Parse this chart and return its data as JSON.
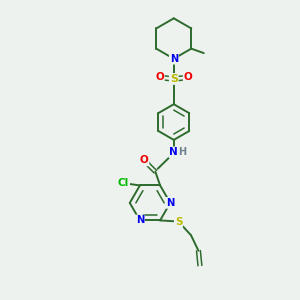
{
  "background_color": "#eef2ee",
  "bond_color": "#2d6b2d",
  "atom_colors": {
    "N": "#0000ee",
    "O": "#ee0000",
    "S": "#bbbb00",
    "Cl": "#00bb00",
    "H": "#708090",
    "C": "#2d6b2d"
  },
  "figsize": [
    3.0,
    3.0
  ],
  "dpi": 100
}
